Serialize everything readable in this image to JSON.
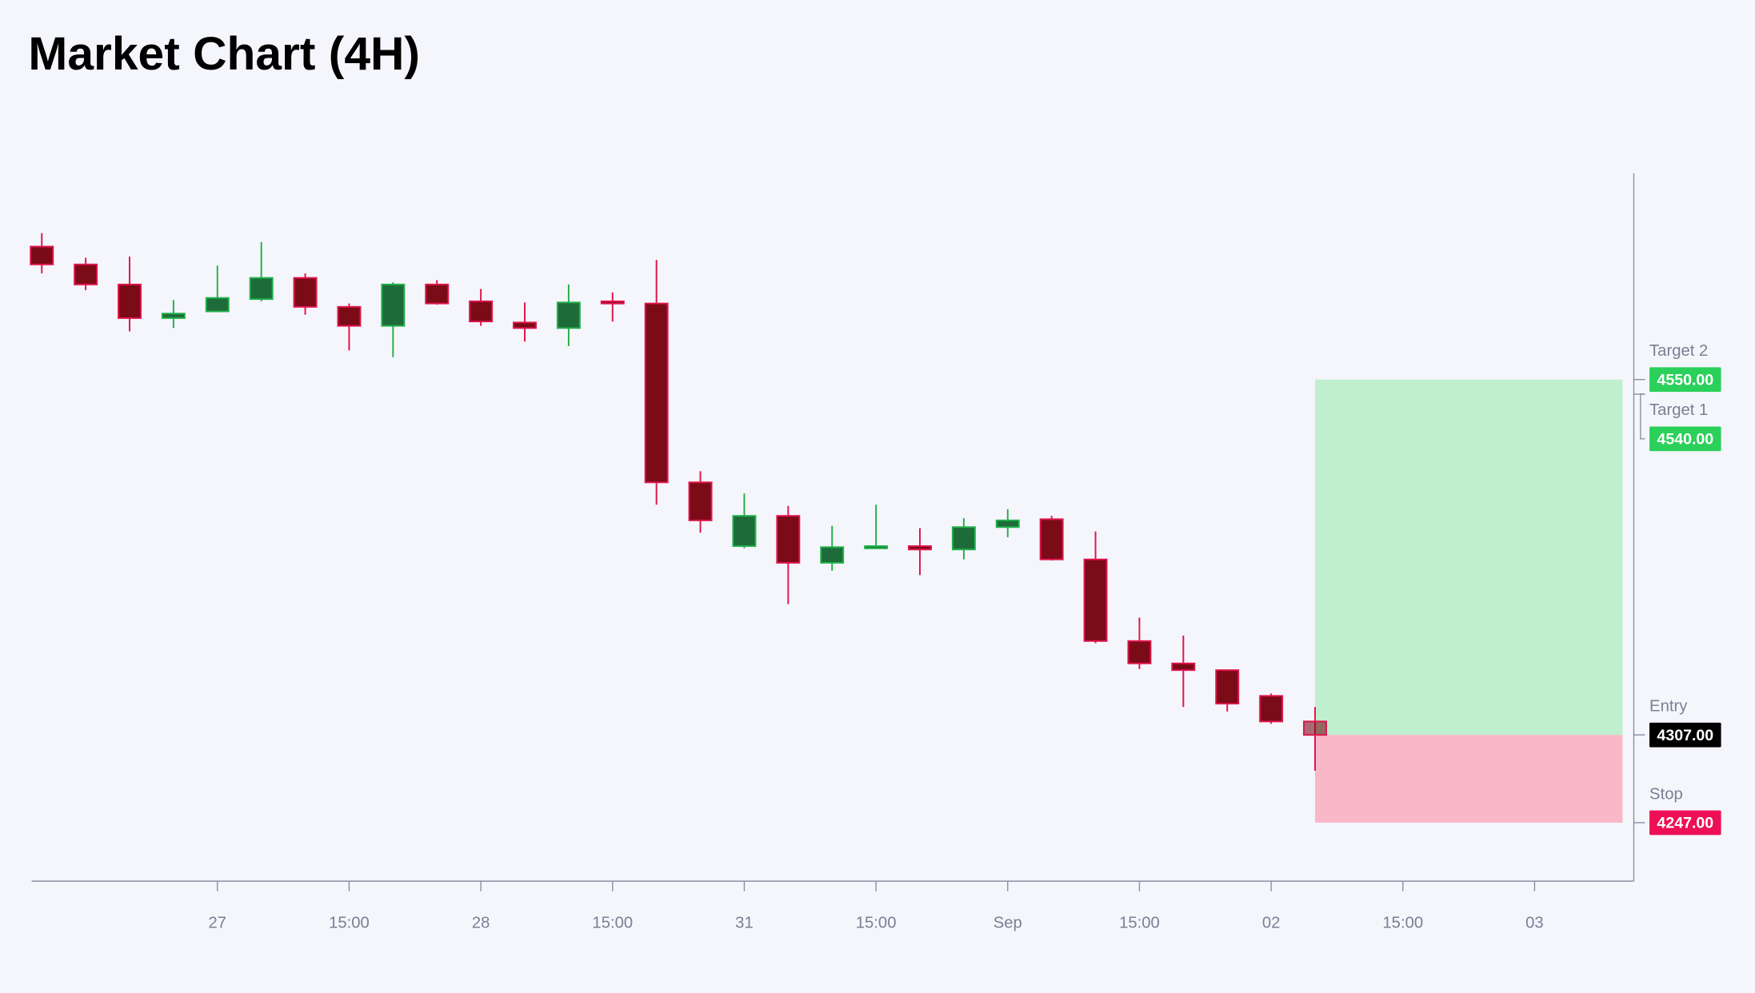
{
  "chart_data": {
    "type": "candlestick",
    "title": "Market Chart (4H)",
    "xlim": [
      -0.23,
      36.26
    ],
    "ylim": [
      4207,
      4691
    ],
    "xticks": [
      {
        "value": 4,
        "label": "27"
      },
      {
        "value": 7,
        "label": "15:00"
      },
      {
        "value": 10,
        "label": "28"
      },
      {
        "value": 13,
        "label": "15:00"
      },
      {
        "value": 16,
        "label": "31"
      },
      {
        "value": 19,
        "label": "15:00"
      },
      {
        "value": 22,
        "label": "Sep"
      },
      {
        "value": 25,
        "label": "15:00"
      },
      {
        "value": 28,
        "label": "02"
      },
      {
        "value": 31,
        "label": "15:00"
      },
      {
        "value": 34,
        "label": "03"
      }
    ],
    "open": [
      4640.9,
      4628.7,
      4615.0,
      4592.0,
      4596.6,
      4605.0,
      4619.5,
      4599.7,
      4586.7,
      4615.0,
      4603.5,
      4589.0,
      4585.2,
      4603.5,
      4602.0,
      4479.7,
      4436.1,
      4456.8,
      4424.7,
      4435.4,
      4436.1,
      4433.8,
      4449.1,
      4454.5,
      4427.0,
      4371.2,
      4355.9,
      4351.3,
      4333.7,
      4316.2
    ],
    "high": [
      4650.1,
      4633.3,
      4634.1,
      4604.3,
      4627.9,
      4644.0,
      4622.6,
      4602.0,
      4616.5,
      4618.0,
      4611.9,
      4602.7,
      4615.0,
      4609.6,
      4631.8,
      4487.3,
      4472.1,
      4463.6,
      4450.0,
      4464.4,
      4448.4,
      4455.2,
      4461.4,
      4456.8,
      4446.1,
      4387.2,
      4375.0,
      4351.3,
      4335.3,
      4326.1
    ],
    "low": [
      4622.6,
      4611.1,
      4582.9,
      4585.2,
      4596.6,
      4603.5,
      4594.3,
      4569.9,
      4565.3,
      4601.2,
      4586.7,
      4576.0,
      4572.9,
      4589.7,
      4464.4,
      4445.3,
      4434.6,
      4396.4,
      4419.3,
      4435.4,
      4416.3,
      4427.0,
      4442.2,
      4426.2,
      4369.7,
      4352.1,
      4326.1,
      4323.0,
      4314.6,
      4282.5
    ],
    "close": [
      4628.7,
      4615.0,
      4592.0,
      4595.1,
      4605.8,
      4619.5,
      4599.7,
      4586.7,
      4615.0,
      4602.0,
      4589.7,
      4585.2,
      4602.7,
      4602.0,
      4479.7,
      4453.7,
      4456.8,
      4424.7,
      4435.4,
      4436.1,
      4433.8,
      4449.1,
      4453.7,
      4427.0,
      4371.2,
      4355.9,
      4351.3,
      4328.4,
      4316.2,
      4307.0
    ],
    "up_color": "#22b04b",
    "up_fill": "#1e6b3a",
    "down_color": "#e0144c",
    "down_fill": "#7a0b17",
    "levels": [
      {
        "name": "Target 2",
        "value": 4550,
        "value_label": "4550.00",
        "color": "#2ad05a"
      },
      {
        "name": "Target 1",
        "value": 4540,
        "value_label": "4540.00",
        "color": "#2ad05a"
      },
      {
        "name": "Entry",
        "value": 4307,
        "value_label": "4307.00",
        "color": "#000000"
      },
      {
        "name": "Stop",
        "value": 4247,
        "value_label": "4247.00",
        "color": "#ef0f57"
      }
    ],
    "reward_color": "#c0efd0",
    "risk_color": "#f9b8c8"
  }
}
